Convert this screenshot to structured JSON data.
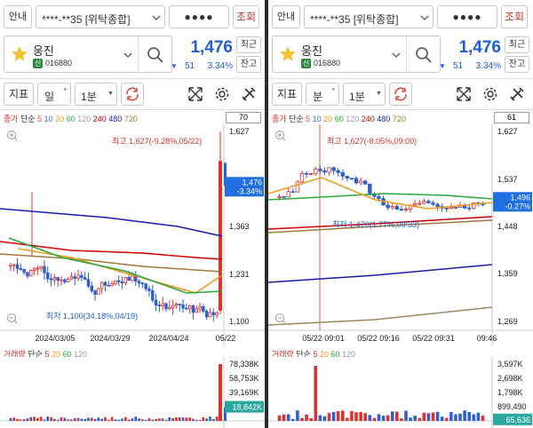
{
  "panels": [
    {
      "top": {
        "notice": "안내",
        "account": "****-**35 [위탁종합]",
        "password": "●●●●",
        "query": "조회"
      },
      "stock": {
        "name": "웅진",
        "badge": "신",
        "code": "016880",
        "price": "1,476",
        "change_arrow": "▼",
        "change": "51",
        "change_pct": "3.34%",
        "btn_latest": "최근",
        "btn_lookup": "잔고"
      },
      "toolbar": {
        "indicator": "지표",
        "period": "일",
        "interval": "1분"
      },
      "legend": {
        "prefix": "종가",
        "type": "단순",
        "periods": [
          "5",
          "10",
          "20",
          "60",
          "120",
          "240",
          "480",
          "720"
        ],
        "count": "70"
      },
      "price_axis": [
        "1,627",
        "1,363",
        "1,231",
        "1,100"
      ],
      "price_tag": {
        "price": "1,476",
        "pct": "-3.34%"
      },
      "high_label": "최고 1,627(-9.28%,05/22)",
      "low_label": "최저 1,100(34.18%,04/19)",
      "time_axis": [
        "2024/03/05",
        "2024/03/29",
        "2024/04/24",
        "05/22"
      ],
      "volume_legend": {
        "prefix": "거래량",
        "type": "단순",
        "periods": [
          "5",
          "20",
          "60",
          "120"
        ]
      },
      "volume_axis": [
        "78,338K",
        "58,753K",
        "39,169K"
      ],
      "volume_tag": "18,842K",
      "chart_data": {
        "type": "candlestick",
        "price_range": [
          1100,
          1627
        ],
        "high": 1627,
        "low": 1100,
        "last": 1476,
        "x_labels": [
          "2024/03/05",
          "2024/03/29",
          "2024/04/24",
          "05/22"
        ],
        "volume_range_K": [
          0,
          78338
        ]
      }
    },
    {
      "top": {
        "notice": "안내",
        "account": "****-**35 [위탁종합]",
        "password": "●●●●",
        "query": "조회"
      },
      "stock": {
        "name": "웅진",
        "badge": "신",
        "code": "016880",
        "price": "1,476",
        "change_arrow": "▼",
        "change": "51",
        "change_pct": "3.34%",
        "btn_latest": "최근",
        "btn_lookup": "잔고"
      },
      "toolbar": {
        "indicator": "지표",
        "period": "분",
        "interval": "1분"
      },
      "legend": {
        "prefix": "종가",
        "type": "단순",
        "periods": [
          "5",
          "10",
          "20",
          "60",
          "120",
          "240",
          "480",
          "720"
        ],
        "count": "61"
      },
      "price_axis": [
        "1,627",
        "1,537",
        "1,448",
        "1,359",
        "1,269"
      ],
      "price_tag": {
        "price": "1,496",
        "pct": "-0.27%"
      },
      "high_label": "최고 1,627(-8.05%,09:00)",
      "low_label": "최저 1,470(1.77%,09:33)",
      "time_axis": [
        "05/22 09:01",
        "05/22 09:16",
        "05/22 09:31",
        "09:46"
      ],
      "volume_legend": {
        "prefix": "거래량",
        "type": "단순",
        "periods": [
          "5",
          "20",
          "60",
          "120"
        ]
      },
      "volume_axis": [
        "3,597K",
        "2,698K",
        "1,798K",
        "899,490"
      ],
      "volume_tag": "65,636",
      "chart_data": {
        "type": "candlestick",
        "price_range": [
          1269,
          1627
        ],
        "high": 1627,
        "low": 1470,
        "last": 1496,
        "x_labels": [
          "05/22 09:01",
          "05/22 09:16",
          "05/22 09:31",
          "09:46"
        ],
        "volume_range_K": [
          0,
          3597
        ]
      }
    }
  ],
  "ma_colors": [
    "#e83c3c",
    "#2f6fd8",
    "#f09a1a",
    "#2aa83a",
    "#9a9a9a",
    "#d00000",
    "#1a1ab0",
    "#a07a3a"
  ]
}
